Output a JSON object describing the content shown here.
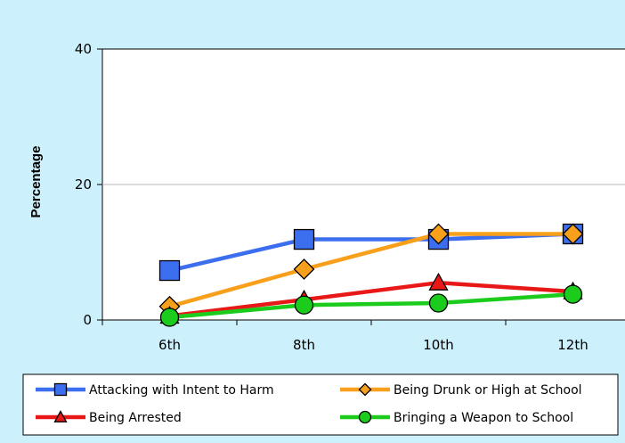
{
  "chart_data": {
    "type": "line",
    "title": "",
    "xlabel": "",
    "ylabel": "Percentage",
    "categories": [
      "6th",
      "8th",
      "10th",
      "12th"
    ],
    "ylim": [
      0,
      40
    ],
    "yticks": [
      0,
      20,
      40
    ],
    "grid": "horizontal",
    "legend_position": "bottom",
    "series": [
      {
        "name": "Attacking with Intent to Harm",
        "values": [
          7.3,
          11.9,
          11.9,
          12.7
        ],
        "color": "#3c6ff0",
        "marker": "square"
      },
      {
        "name": "Being Drunk or High at School",
        "values": [
          2.0,
          7.5,
          12.7,
          12.7
        ],
        "color": "#f8a01c",
        "marker": "diamond"
      },
      {
        "name": "Being Arrested",
        "values": [
          0.6,
          3.0,
          5.5,
          4.2
        ],
        "color": "#e81818",
        "marker": "triangle"
      },
      {
        "name": "Bringing a Weapon to School",
        "values": [
          0.4,
          2.2,
          2.5,
          3.8
        ],
        "color": "#1ccc1c",
        "marker": "circle"
      }
    ]
  }
}
